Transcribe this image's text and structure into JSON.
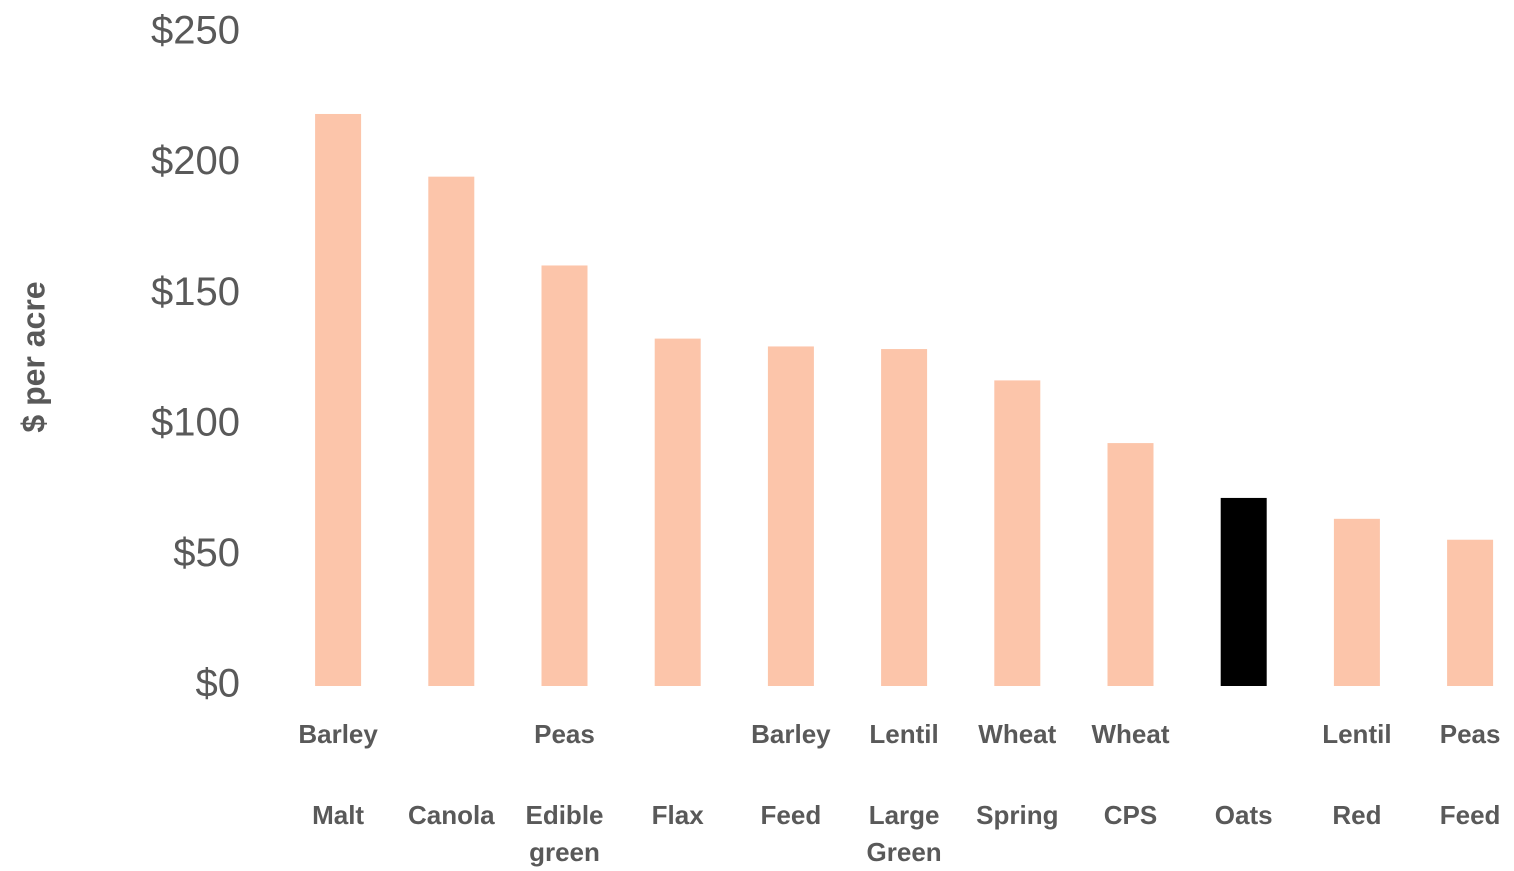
{
  "chart_data": {
    "type": "bar",
    "y_label": "$ per acre",
    "groups": [
      "Barley",
      null,
      "Peas",
      null,
      "Barley",
      "Lentil",
      "Wheat",
      "Wheat",
      null,
      "Lentil",
      "Peas"
    ],
    "categories": [
      "Malt",
      "Canola",
      "Edible green",
      "Flax",
      "Feed",
      "Large Green",
      "Spring",
      "CPS",
      "Oats",
      "Red",
      "Feed"
    ],
    "values": [
      219,
      195,
      161,
      133,
      130,
      129,
      117,
      93,
      72,
      64,
      56
    ],
    "colors": [
      "#fcc5aa",
      "#fcc5aa",
      "#fcc5aa",
      "#fcc5aa",
      "#fcc5aa",
      "#fcc5aa",
      "#fcc5aa",
      "#fcc5aa",
      "#000000",
      "#fcc5aa",
      "#fcc5aa"
    ],
    "ylim": [
      0,
      250
    ],
    "yticks": [
      {
        "value": 0,
        "label": "$0"
      },
      {
        "value": 50,
        "label": "$50"
      },
      {
        "value": 100,
        "label": "$100"
      },
      {
        "value": 150,
        "label": "$150"
      },
      {
        "value": 200,
        "label": "$200"
      },
      {
        "value": 250,
        "label": "$250"
      }
    ],
    "grid": false
  }
}
